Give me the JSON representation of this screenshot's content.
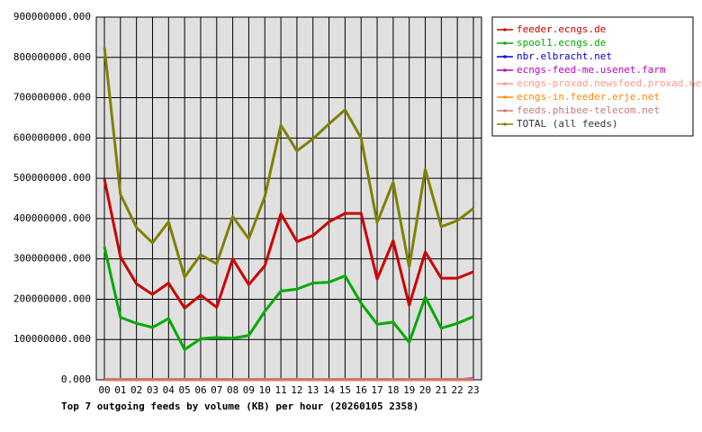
{
  "chart_data": {
    "type": "line",
    "title": "Top 7 outgoing feeds by volume (KB) per hour (20260105 2358)",
    "categories": [
      "00",
      "01",
      "02",
      "03",
      "04",
      "05",
      "06",
      "07",
      "08",
      "09",
      "10",
      "11",
      "12",
      "13",
      "14",
      "15",
      "16",
      "17",
      "18",
      "19",
      "20",
      "21",
      "22",
      "23"
    ],
    "ylim": [
      0,
      900000000
    ],
    "yticks": [
      {
        "value": 0,
        "label": "0.000"
      },
      {
        "value": 100000000,
        "label": "100000000.000"
      },
      {
        "value": 200000000,
        "label": "200000000.000"
      },
      {
        "value": 300000000,
        "label": "300000000.000"
      },
      {
        "value": 400000000,
        "label": "400000000.000"
      },
      {
        "value": 500000000,
        "label": "500000000.000"
      },
      {
        "value": 600000000,
        "label": "600000000.000"
      },
      {
        "value": 700000000,
        "label": "700000000.000"
      },
      {
        "value": 800000000,
        "label": "800000000.000"
      },
      {
        "value": 900000000,
        "label": "900000000.000"
      }
    ],
    "grid": true,
    "legend": "right",
    "series": [
      {
        "name": "feeder.ecngs.de",
        "color": "#cc0000",
        "values": [
          498000000,
          305000000,
          238000000,
          212000000,
          240000000,
          178000000,
          210000000,
          180000000,
          300000000,
          236000000,
          283000000,
          412000000,
          343000000,
          358000000,
          392000000,
          413000000,
          413000000,
          250000000,
          345000000,
          185000000,
          317000000,
          252000000,
          252000000,
          268000000
        ]
      },
      {
        "name": "spool1.ecngs.de",
        "color": "#00aa00",
        "values": [
          330000000,
          155000000,
          140000000,
          130000000,
          152000000,
          75000000,
          102000000,
          105000000,
          103000000,
          110000000,
          170000000,
          220000000,
          225000000,
          240000000,
          242000000,
          258000000,
          190000000,
          138000000,
          143000000,
          93000000,
          205000000,
          128000000,
          140000000,
          157000000
        ]
      },
      {
        "name": "nbr.elbracht.net",
        "color": "#0000cc",
        "values": [
          0,
          0,
          0,
          0,
          0,
          0,
          0,
          0,
          0,
          0,
          0,
          0,
          0,
          0,
          0,
          0,
          0,
          0,
          0,
          0,
          0,
          0,
          0,
          0
        ]
      },
      {
        "name": "ecngs-feed-me.usenet.farm",
        "color": "#bb00bb",
        "values": [
          0,
          0,
          0,
          0,
          0,
          0,
          0,
          0,
          0,
          0,
          0,
          0,
          0,
          0,
          0,
          0,
          0,
          0,
          0,
          0,
          0,
          0,
          0,
          3000000
        ]
      },
      {
        "name": "ecngs-proxad.newsfeed.proxad.net",
        "color": "#ff9988",
        "values": [
          0,
          0,
          0,
          0,
          0,
          0,
          0,
          0,
          0,
          0,
          0,
          0,
          0,
          0,
          0,
          0,
          0,
          0,
          0,
          0,
          0,
          0,
          0,
          0
        ]
      },
      {
        "name": "ecngs-in.feeder.erje.net",
        "color": "#ff8800",
        "values": [
          0,
          0,
          0,
          0,
          0,
          0,
          0,
          0,
          0,
          0,
          0,
          0,
          0,
          0,
          0,
          0,
          0,
          0,
          0,
          0,
          0,
          0,
          0,
          0
        ]
      },
      {
        "name": "feeds.phibee-telecom.net",
        "color": "#cc7777",
        "values": [
          1000000,
          1000000,
          1000000,
          1000000,
          1000000,
          1000000,
          1000000,
          1000000,
          1000000,
          1000000,
          1000000,
          1000000,
          1000000,
          1000000,
          1000000,
          1000000,
          1000000,
          1000000,
          1000000,
          1000000,
          1000000,
          1000000,
          1000000,
          1000000
        ]
      },
      {
        "name": "TOTAL (all feeds)",
        "color": "#808000",
        "values": [
          825000000,
          460000000,
          378000000,
          340000000,
          392000000,
          255000000,
          310000000,
          288000000,
          405000000,
          350000000,
          455000000,
          632000000,
          568000000,
          598000000,
          635000000,
          670000000,
          600000000,
          390000000,
          490000000,
          280000000,
          522000000,
          380000000,
          395000000,
          425000000
        ]
      }
    ]
  }
}
